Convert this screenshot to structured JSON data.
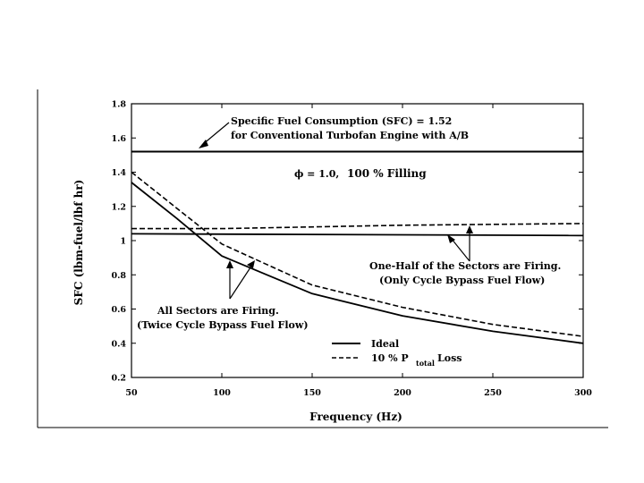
{
  "chart_data": {
    "type": "line",
    "xlabel": "Frequency (Hz)",
    "ylabel": "SFC (lbm-fuel/lbf hr)",
    "xlim": [
      50,
      300
    ],
    "ylim": [
      0.2,
      1.8
    ],
    "x_ticks": [
      "50",
      "100",
      "150",
      "200",
      "250",
      "300"
    ],
    "y_ticks": [
      "0.2",
      "0.4",
      "0.6",
      "0.8",
      "1",
      "1.2",
      "1.4",
      "1.6",
      "1.8"
    ],
    "grid": false,
    "legend_position": "bottom-center",
    "reference_line": {
      "y": 1.52
    },
    "series": [
      {
        "name": "Ideal",
        "style": "solid",
        "x": [
          50,
          75,
          100,
          125,
          150,
          200,
          250,
          300
        ],
        "y": [
          1.34,
          1.13,
          0.91,
          0.8,
          0.69,
          0.56,
          0.47,
          0.4
        ]
      },
      {
        "name": "10 % P",
        "name_subscript": "total",
        "name_suffix": "Loss",
        "style": "dashed",
        "x": [
          50,
          75,
          100,
          125,
          150,
          200,
          250,
          300
        ],
        "y": [
          1.4,
          1.19,
          0.98,
          0.86,
          0.74,
          0.61,
          0.51,
          0.44
        ]
      },
      {
        "style": "solid",
        "x": [
          50,
          300
        ],
        "y": [
          1.04,
          1.03
        ]
      },
      {
        "style": "dashed",
        "x": [
          50,
          100,
          200,
          300
        ],
        "y": [
          1.07,
          1.07,
          1.09,
          1.1
        ]
      }
    ],
    "annotations": {
      "sfc_line1": "Specific Fuel Consumption (SFC) = 1.52",
      "sfc_line2": "for Conventional Turbofan Engine with A/B",
      "condition_phi": "ϕ = 1.0,",
      "condition_fill": "100 % Filling",
      "half_line1": "One-Half of the Sectors are Firing.",
      "half_line2": "(Only Cycle Bypass Fuel Flow)",
      "all_line1": "All Sectors are Firing.",
      "all_line2": "(Twice Cycle Bypass Fuel Flow)"
    }
  }
}
